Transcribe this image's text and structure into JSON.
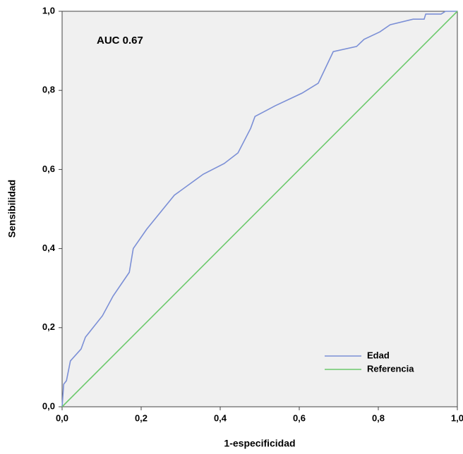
{
  "chart_data": {
    "type": "line",
    "annotation": "AUC 0.67",
    "xlabel": "1-especificidad",
    "ylabel": "Sensibilidad",
    "xlim": [
      0,
      1
    ],
    "ylim": [
      0,
      1
    ],
    "xticks": [
      {
        "value": 0,
        "label": "0,0"
      },
      {
        "value": 0.2,
        "label": "0,2"
      },
      {
        "value": 0.4,
        "label": "0,4"
      },
      {
        "value": 0.6,
        "label": "0,6"
      },
      {
        "value": 0.8,
        "label": "0,8"
      },
      {
        "value": 1,
        "label": "1,0"
      }
    ],
    "yticks": [
      {
        "value": 0,
        "label": "0,0"
      },
      {
        "value": 0.2,
        "label": "0,2"
      },
      {
        "value": 0.4,
        "label": "0,4"
      },
      {
        "value": 0.6,
        "label": "0,6"
      },
      {
        "value": 0.8,
        "label": "0,8"
      },
      {
        "value": 1,
        "label": "1,0"
      }
    ],
    "legend": "lower right",
    "series": [
      {
        "name": "Edad",
        "color": "#7b8fd6",
        "x": [
          0,
          0.004,
          0.011,
          0.021,
          0.048,
          0.059,
          0.075,
          0.102,
          0.129,
          0.17,
          0.18,
          0.214,
          0.284,
          0.357,
          0.41,
          0.445,
          0.477,
          0.488,
          0.539,
          0.607,
          0.648,
          0.686,
          0.745,
          0.764,
          0.804,
          0.83,
          0.888,
          0.916,
          0.92,
          0.959,
          0.97,
          1
        ],
        "values": [
          0,
          0.057,
          0.066,
          0.116,
          0.146,
          0.176,
          0.196,
          0.23,
          0.28,
          0.34,
          0.4,
          0.449,
          0.535,
          0.588,
          0.615,
          0.642,
          0.704,
          0.734,
          0.761,
          0.793,
          0.818,
          0.898,
          0.911,
          0.929,
          0.948,
          0.966,
          0.98,
          0.98,
          0.993,
          0.993,
          1,
          1
        ]
      },
      {
        "name": "Referencia",
        "color": "#6cc96c",
        "x": [
          0,
          1
        ],
        "values": [
          0,
          1
        ]
      }
    ]
  }
}
